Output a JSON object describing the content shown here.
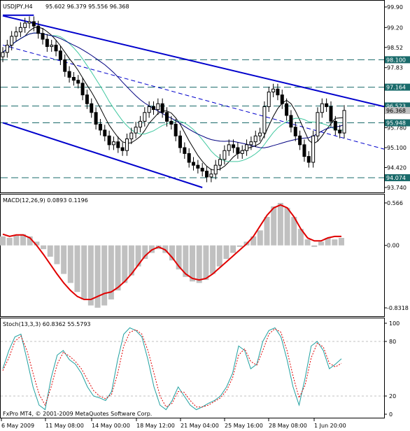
{
  "price_pane": {
    "title": "USDJPY,H4",
    "ohlc": "95.602 96.379 95.556 96.368",
    "price_axis_ticks": [
      "99.90",
      "99.20",
      "98.52",
      "97.83",
      "97.15",
      "96.47",
      "95.780",
      "95.100",
      "94.420",
      "93.740"
    ],
    "level_labels": [
      {
        "text": "98.100",
        "value": 98.1
      },
      {
        "text": "97.164",
        "value": 97.164
      },
      {
        "text": "96.523",
        "value": 96.523
      },
      {
        "text": "96.368",
        "value": 96.368
      },
      {
        "text": "95.948",
        "value": 95.948
      },
      {
        "text": "94.074",
        "value": 94.074
      }
    ]
  },
  "macd_pane": {
    "title": "MACD(12,26,9) 0.0893 0.1196",
    "axis_ticks": [
      "0.566",
      "0.00",
      "-0.8318"
    ]
  },
  "stoch_pane": {
    "title": "Stoch(13,3,3) 60.8362 55.5793",
    "axis_ticks": [
      "100",
      "80",
      "20",
      "0"
    ]
  },
  "time_axis": [
    "6 May 2009",
    "11 May 08:00",
    "14 May 00:00",
    "18 May 12:00",
    "21 May 04:00",
    "25 May 16:00",
    "28 May 08:00",
    "1 Jun 20:00"
  ],
  "copyright": "FxPro MT4, © 2001-2009 MetaQuotes Software Corp.",
  "colors": {
    "bull_candle": "#ffffff",
    "bear_candle": "#000000",
    "channel": "#0000cc",
    "level_line": "#1a6b6b",
    "ma_fast": "#40c8a0",
    "ma_slow": "#000000",
    "ma_long": "#000080",
    "macd_hist": "#c0c0c0",
    "macd_signal": "#e00000",
    "stoch_main": "#20a0a0",
    "stoch_signal": "#e00000",
    "label_bg": "#1a6b6b",
    "label_text": "#ffffff",
    "current_price_bg": "#c0c0c0"
  },
  "chart_data": {
    "type": "candlestick",
    "symbol": "USDJPY",
    "timeframe": "H4",
    "ylim": [
      93.74,
      99.9
    ],
    "closes": [
      98.35,
      98.6,
      98.9,
      99.05,
      99.2,
      99.35,
      99.4,
      99.25,
      99.0,
      98.8,
      98.55,
      98.6,
      98.4,
      98.1,
      97.7,
      97.5,
      97.4,
      97.3,
      96.9,
      96.6,
      96.3,
      95.9,
      95.7,
      95.5,
      95.2,
      95.3,
      95.1,
      95.0,
      95.4,
      95.6,
      95.8,
      96.0,
      96.3,
      96.5,
      96.4,
      96.6,
      96.3,
      96.0,
      95.9,
      95.5,
      95.1,
      94.9,
      94.6,
      94.5,
      94.4,
      94.3,
      94.1,
      94.2,
      94.5,
      94.7,
      95.0,
      95.2,
      95.1,
      94.9,
      95.0,
      95.2,
      95.3,
      95.5,
      95.6,
      96.5,
      97.0,
      97.1,
      96.9,
      96.6,
      96.2,
      95.8,
      95.5,
      95.2,
      94.8,
      94.6,
      95.5,
      96.3,
      96.6,
      96.5,
      96.0,
      95.7,
      95.6,
      96.37
    ],
    "macd_histogram": [
      0.12,
      0.1,
      0.13,
      0.15,
      0.12,
      0.05,
      -0.05,
      -0.15,
      -0.25,
      -0.38,
      -0.5,
      -0.62,
      -0.72,
      -0.8,
      -0.83,
      -0.8,
      -0.72,
      -0.6,
      -0.5,
      -0.4,
      -0.28,
      -0.18,
      -0.1,
      -0.05,
      -0.1,
      -0.2,
      -0.32,
      -0.42,
      -0.48,
      -0.5,
      -0.46,
      -0.38,
      -0.28,
      -0.18,
      -0.1,
      -0.02,
      0.05,
      0.12,
      0.2,
      0.38,
      0.52,
      0.566,
      0.5,
      0.38,
      0.22,
      0.08,
      -0.02,
      0.05,
      0.1,
      0.08,
      0.1
    ],
    "macd_signal": [
      0.15,
      0.12,
      0.14,
      0.14,
      0.1,
      0.0,
      -0.12,
      -0.25,
      -0.38,
      -0.5,
      -0.6,
      -0.68,
      -0.72,
      -0.72,
      -0.68,
      -0.64,
      -0.62,
      -0.56,
      -0.48,
      -0.38,
      -0.26,
      -0.14,
      -0.06,
      -0.02,
      -0.06,
      -0.16,
      -0.28,
      -0.38,
      -0.44,
      -0.46,
      -0.44,
      -0.38,
      -0.3,
      -0.22,
      -0.14,
      -0.06,
      0.02,
      0.12,
      0.26,
      0.4,
      0.5,
      0.54,
      0.5,
      0.38,
      0.22,
      0.1,
      0.06,
      0.06,
      0.1,
      0.12,
      0.12
    ],
    "stoch_main": [
      50,
      70,
      85,
      88,
      60,
      30,
      10,
      5,
      40,
      65,
      70,
      60,
      55,
      45,
      30,
      20,
      18,
      15,
      25,
      60,
      88,
      95,
      92,
      85,
      60,
      30,
      10,
      5,
      15,
      30,
      20,
      10,
      5,
      8,
      12,
      15,
      20,
      30,
      45,
      75,
      70,
      50,
      55,
      80,
      92,
      95,
      85,
      60,
      30,
      10,
      40,
      75,
      80,
      70,
      50,
      55,
      61
    ],
    "stoch_signal": [
      48,
      62,
      80,
      86,
      70,
      45,
      22,
      10,
      30,
      55,
      68,
      64,
      58,
      50,
      38,
      26,
      20,
      17,
      22,
      45,
      75,
      90,
      93,
      88,
      70,
      45,
      20,
      8,
      12,
      25,
      24,
      15,
      8,
      8,
      10,
      14,
      18,
      26,
      40,
      65,
      72,
      58,
      54,
      70,
      88,
      94,
      90,
      70,
      42,
      18,
      32,
      62,
      78,
      74,
      56,
      52,
      56
    ]
  }
}
